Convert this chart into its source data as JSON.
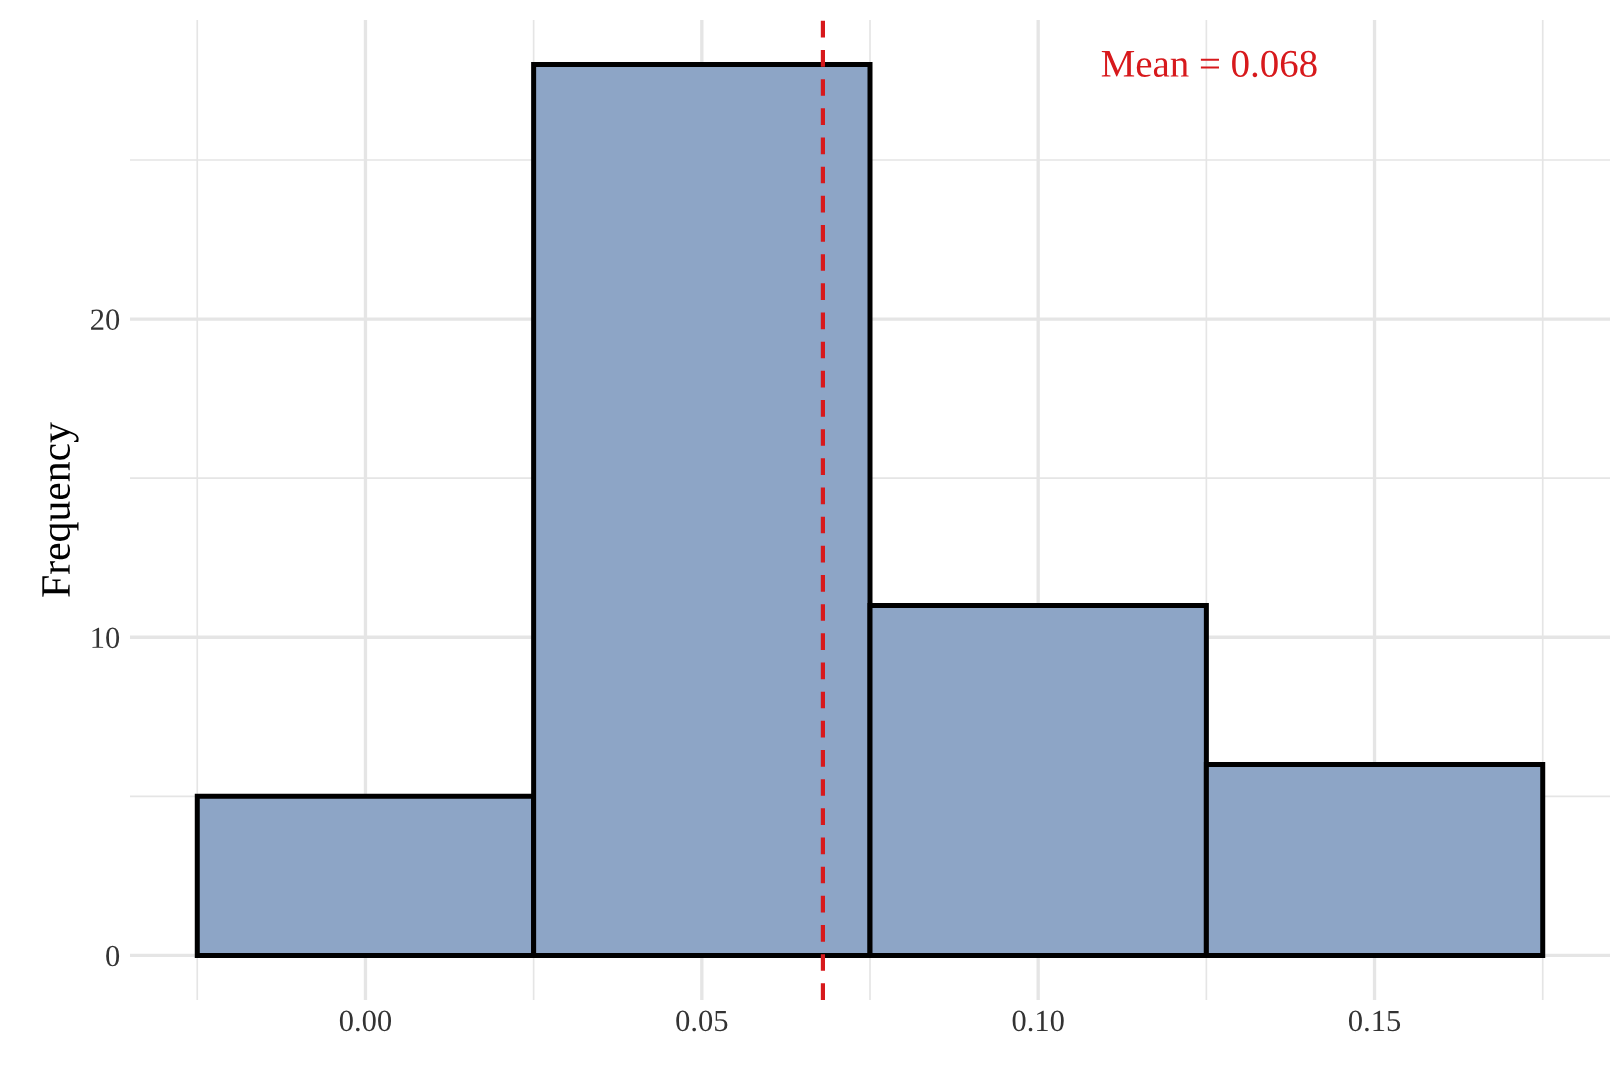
{
  "chart_data": {
    "type": "histogram",
    "ylabel": "Frequency",
    "bins": [
      -0.025,
      0.025,
      0.075,
      0.125,
      0.175
    ],
    "values": [
      5,
      28,
      11,
      6
    ],
    "color": "#8da5c6",
    "xlim": [
      -0.035,
      0.185
    ],
    "xticks": [
      {
        "value": -0.025,
        "label": null
      },
      {
        "value": 0.0,
        "label": "0.00"
      },
      {
        "value": 0.025,
        "label": null
      },
      {
        "value": 0.05,
        "label": "0.05"
      },
      {
        "value": 0.075,
        "label": null
      },
      {
        "value": 0.1,
        "label": "0.10"
      },
      {
        "value": 0.125,
        "label": null
      },
      {
        "value": 0.15,
        "label": "0.15"
      },
      {
        "value": 0.175,
        "label": null
      }
    ],
    "ylim": [
      -1.4,
      29.4
    ],
    "yticks": [
      0,
      {
        "value": 5,
        "label": null
      },
      10,
      {
        "value": 15,
        "label": null
      },
      20,
      {
        "value": 25,
        "label": null
      }
    ],
    "grid": true,
    "ref_lines": [
      {
        "axis": "x",
        "value": 0.068,
        "label": "Mean = 0.068",
        "color": "#d7191c",
        "line_style": "dashed"
      }
    ]
  }
}
